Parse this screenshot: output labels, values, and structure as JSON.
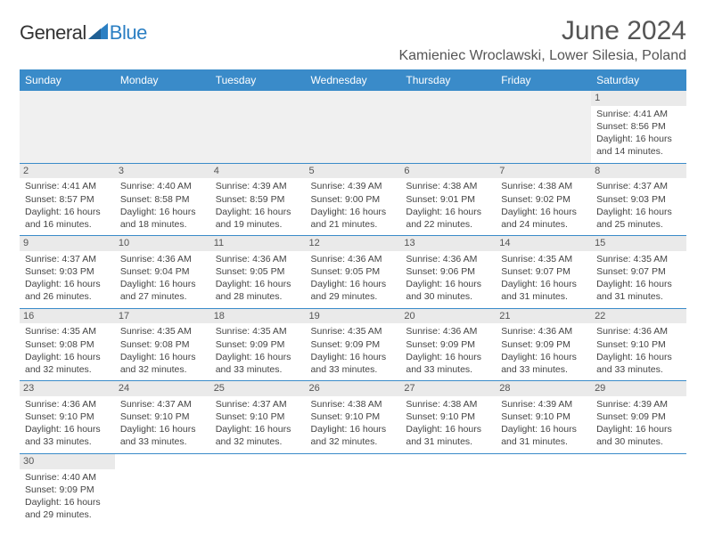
{
  "brand": {
    "general": "General",
    "blue": "Blue"
  },
  "title": "June 2024",
  "location": "Kamieniec Wroclawski, Lower Silesia, Poland",
  "colors": {
    "header_bg": "#3a8bc9",
    "header_text": "#ffffff",
    "brand_blue": "#2b7fc3",
    "daynum_bg": "#eaeaea",
    "border": "#3a8bc9",
    "empty_bg": "#f0f0f0"
  },
  "typography": {
    "month_title_fontsize": 30,
    "location_fontsize": 16,
    "day_header_fontsize": 12,
    "cell_fontsize": 10.5
  },
  "day_headers": [
    "Sunday",
    "Monday",
    "Tuesday",
    "Wednesday",
    "Thursday",
    "Friday",
    "Saturday"
  ],
  "weeks": [
    [
      null,
      null,
      null,
      null,
      null,
      null,
      {
        "n": "1",
        "sr": "Sunrise: 4:41 AM",
        "ss": "Sunset: 8:56 PM",
        "d1": "Daylight: 16 hours",
        "d2": "and 14 minutes."
      }
    ],
    [
      {
        "n": "2",
        "sr": "Sunrise: 4:41 AM",
        "ss": "Sunset: 8:57 PM",
        "d1": "Daylight: 16 hours",
        "d2": "and 16 minutes."
      },
      {
        "n": "3",
        "sr": "Sunrise: 4:40 AM",
        "ss": "Sunset: 8:58 PM",
        "d1": "Daylight: 16 hours",
        "d2": "and 18 minutes."
      },
      {
        "n": "4",
        "sr": "Sunrise: 4:39 AM",
        "ss": "Sunset: 8:59 PM",
        "d1": "Daylight: 16 hours",
        "d2": "and 19 minutes."
      },
      {
        "n": "5",
        "sr": "Sunrise: 4:39 AM",
        "ss": "Sunset: 9:00 PM",
        "d1": "Daylight: 16 hours",
        "d2": "and 21 minutes."
      },
      {
        "n": "6",
        "sr": "Sunrise: 4:38 AM",
        "ss": "Sunset: 9:01 PM",
        "d1": "Daylight: 16 hours",
        "d2": "and 22 minutes."
      },
      {
        "n": "7",
        "sr": "Sunrise: 4:38 AM",
        "ss": "Sunset: 9:02 PM",
        "d1": "Daylight: 16 hours",
        "d2": "and 24 minutes."
      },
      {
        "n": "8",
        "sr": "Sunrise: 4:37 AM",
        "ss": "Sunset: 9:03 PM",
        "d1": "Daylight: 16 hours",
        "d2": "and 25 minutes."
      }
    ],
    [
      {
        "n": "9",
        "sr": "Sunrise: 4:37 AM",
        "ss": "Sunset: 9:03 PM",
        "d1": "Daylight: 16 hours",
        "d2": "and 26 minutes."
      },
      {
        "n": "10",
        "sr": "Sunrise: 4:36 AM",
        "ss": "Sunset: 9:04 PM",
        "d1": "Daylight: 16 hours",
        "d2": "and 27 minutes."
      },
      {
        "n": "11",
        "sr": "Sunrise: 4:36 AM",
        "ss": "Sunset: 9:05 PM",
        "d1": "Daylight: 16 hours",
        "d2": "and 28 minutes."
      },
      {
        "n": "12",
        "sr": "Sunrise: 4:36 AM",
        "ss": "Sunset: 9:05 PM",
        "d1": "Daylight: 16 hours",
        "d2": "and 29 minutes."
      },
      {
        "n": "13",
        "sr": "Sunrise: 4:36 AM",
        "ss": "Sunset: 9:06 PM",
        "d1": "Daylight: 16 hours",
        "d2": "and 30 minutes."
      },
      {
        "n": "14",
        "sr": "Sunrise: 4:35 AM",
        "ss": "Sunset: 9:07 PM",
        "d1": "Daylight: 16 hours",
        "d2": "and 31 minutes."
      },
      {
        "n": "15",
        "sr": "Sunrise: 4:35 AM",
        "ss": "Sunset: 9:07 PM",
        "d1": "Daylight: 16 hours",
        "d2": "and 31 minutes."
      }
    ],
    [
      {
        "n": "16",
        "sr": "Sunrise: 4:35 AM",
        "ss": "Sunset: 9:08 PM",
        "d1": "Daylight: 16 hours",
        "d2": "and 32 minutes."
      },
      {
        "n": "17",
        "sr": "Sunrise: 4:35 AM",
        "ss": "Sunset: 9:08 PM",
        "d1": "Daylight: 16 hours",
        "d2": "and 32 minutes."
      },
      {
        "n": "18",
        "sr": "Sunrise: 4:35 AM",
        "ss": "Sunset: 9:09 PM",
        "d1": "Daylight: 16 hours",
        "d2": "and 33 minutes."
      },
      {
        "n": "19",
        "sr": "Sunrise: 4:35 AM",
        "ss": "Sunset: 9:09 PM",
        "d1": "Daylight: 16 hours",
        "d2": "and 33 minutes."
      },
      {
        "n": "20",
        "sr": "Sunrise: 4:36 AM",
        "ss": "Sunset: 9:09 PM",
        "d1": "Daylight: 16 hours",
        "d2": "and 33 minutes."
      },
      {
        "n": "21",
        "sr": "Sunrise: 4:36 AM",
        "ss": "Sunset: 9:09 PM",
        "d1": "Daylight: 16 hours",
        "d2": "and 33 minutes."
      },
      {
        "n": "22",
        "sr": "Sunrise: 4:36 AM",
        "ss": "Sunset: 9:10 PM",
        "d1": "Daylight: 16 hours",
        "d2": "and 33 minutes."
      }
    ],
    [
      {
        "n": "23",
        "sr": "Sunrise: 4:36 AM",
        "ss": "Sunset: 9:10 PM",
        "d1": "Daylight: 16 hours",
        "d2": "and 33 minutes."
      },
      {
        "n": "24",
        "sr": "Sunrise: 4:37 AM",
        "ss": "Sunset: 9:10 PM",
        "d1": "Daylight: 16 hours",
        "d2": "and 33 minutes."
      },
      {
        "n": "25",
        "sr": "Sunrise: 4:37 AM",
        "ss": "Sunset: 9:10 PM",
        "d1": "Daylight: 16 hours",
        "d2": "and 32 minutes."
      },
      {
        "n": "26",
        "sr": "Sunrise: 4:38 AM",
        "ss": "Sunset: 9:10 PM",
        "d1": "Daylight: 16 hours",
        "d2": "and 32 minutes."
      },
      {
        "n": "27",
        "sr": "Sunrise: 4:38 AM",
        "ss": "Sunset: 9:10 PM",
        "d1": "Daylight: 16 hours",
        "d2": "and 31 minutes."
      },
      {
        "n": "28",
        "sr": "Sunrise: 4:39 AM",
        "ss": "Sunset: 9:10 PM",
        "d1": "Daylight: 16 hours",
        "d2": "and 31 minutes."
      },
      {
        "n": "29",
        "sr": "Sunrise: 4:39 AM",
        "ss": "Sunset: 9:09 PM",
        "d1": "Daylight: 16 hours",
        "d2": "and 30 minutes."
      }
    ],
    [
      {
        "n": "30",
        "sr": "Sunrise: 4:40 AM",
        "ss": "Sunset: 9:09 PM",
        "d1": "Daylight: 16 hours",
        "d2": "and 29 minutes."
      },
      null,
      null,
      null,
      null,
      null,
      null
    ]
  ]
}
